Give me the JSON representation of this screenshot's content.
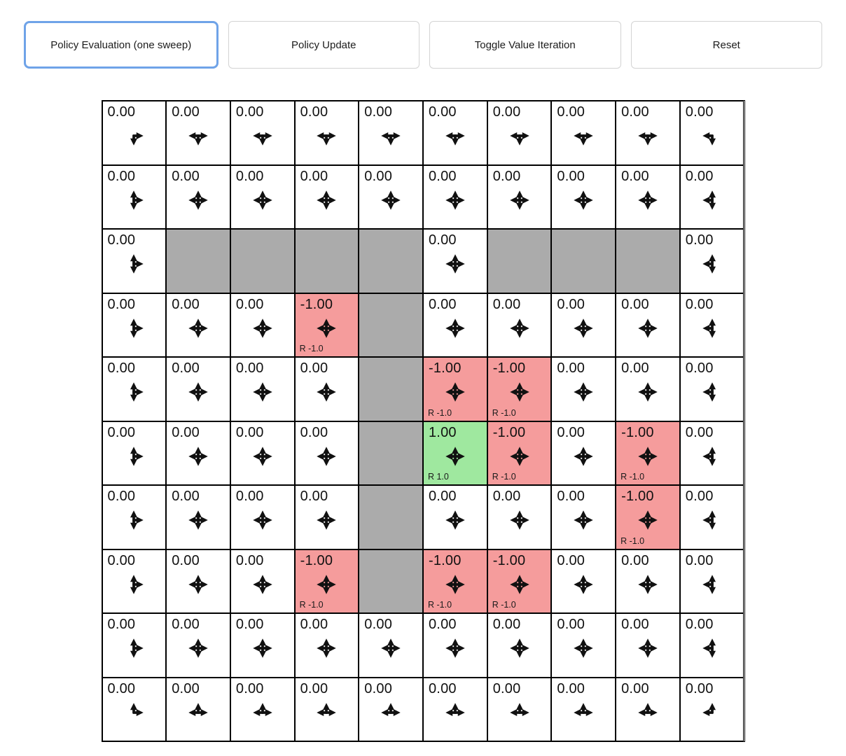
{
  "toolbar": {
    "buttons": [
      {
        "label": "Policy Evaluation (one sweep)",
        "active": true
      },
      {
        "label": "Policy Update",
        "active": false
      },
      {
        "label": "Toggle Value Iteration",
        "active": false
      },
      {
        "label": "Reset",
        "active": false
      }
    ]
  },
  "colors": {
    "wall": "#ababab",
    "penalty": "#f59c9c",
    "goal": "#9fe89f",
    "arrow": "#111111",
    "focus_border": "#6fa3e8",
    "button_border": "#d3d3d3",
    "grid_border": "#000000"
  },
  "grid": {
    "rows_count": 10,
    "cols_count": 10,
    "rows": [
      [
        {
          "value": "0.00",
          "type": "normal",
          "arrows": [
            "down",
            "right"
          ]
        },
        {
          "value": "0.00",
          "type": "normal",
          "arrows": [
            "left",
            "down",
            "right"
          ]
        },
        {
          "value": "0.00",
          "type": "normal",
          "arrows": [
            "left",
            "down",
            "right"
          ]
        },
        {
          "value": "0.00",
          "type": "normal",
          "arrows": [
            "left",
            "down",
            "right"
          ]
        },
        {
          "value": "0.00",
          "type": "normal",
          "arrows": [
            "left",
            "down",
            "right"
          ]
        },
        {
          "value": "0.00",
          "type": "normal",
          "arrows": [
            "left",
            "down",
            "right"
          ]
        },
        {
          "value": "0.00",
          "type": "normal",
          "arrows": [
            "left",
            "down",
            "right"
          ]
        },
        {
          "value": "0.00",
          "type": "normal",
          "arrows": [
            "left",
            "down",
            "right"
          ]
        },
        {
          "value": "0.00",
          "type": "normal",
          "arrows": [
            "left",
            "down",
            "right"
          ]
        },
        {
          "value": "0.00",
          "type": "normal",
          "arrows": [
            "left",
            "down"
          ]
        }
      ],
      [
        {
          "value": "0.00",
          "type": "normal",
          "arrows": [
            "up",
            "down",
            "right"
          ]
        },
        {
          "value": "0.00",
          "type": "normal",
          "arrows": [
            "up",
            "down",
            "left",
            "right"
          ]
        },
        {
          "value": "0.00",
          "type": "normal",
          "arrows": [
            "up",
            "down",
            "left",
            "right"
          ]
        },
        {
          "value": "0.00",
          "type": "normal",
          "arrows": [
            "up",
            "down",
            "left",
            "right"
          ]
        },
        {
          "value": "0.00",
          "type": "normal",
          "arrows": [
            "up",
            "down",
            "left",
            "right"
          ]
        },
        {
          "value": "0.00",
          "type": "normal",
          "arrows": [
            "up",
            "down",
            "left",
            "right"
          ]
        },
        {
          "value": "0.00",
          "type": "normal",
          "arrows": [
            "up",
            "down",
            "left",
            "right"
          ]
        },
        {
          "value": "0.00",
          "type": "normal",
          "arrows": [
            "up",
            "down",
            "left",
            "right"
          ]
        },
        {
          "value": "0.00",
          "type": "normal",
          "arrows": [
            "up",
            "down",
            "left",
            "right"
          ]
        },
        {
          "value": "0.00",
          "type": "normal",
          "arrows": [
            "up",
            "down",
            "left"
          ]
        }
      ],
      [
        {
          "value": "0.00",
          "type": "normal",
          "arrows": [
            "up",
            "down",
            "right"
          ]
        },
        {
          "type": "wall"
        },
        {
          "type": "wall"
        },
        {
          "type": "wall"
        },
        {
          "type": "wall"
        },
        {
          "value": "0.00",
          "type": "normal",
          "arrows": [
            "up",
            "down",
            "left",
            "right"
          ]
        },
        {
          "type": "wall"
        },
        {
          "type": "wall"
        },
        {
          "type": "wall"
        },
        {
          "value": "0.00",
          "type": "normal",
          "arrows": [
            "up",
            "down",
            "left"
          ]
        }
      ],
      [
        {
          "value": "0.00",
          "type": "normal",
          "arrows": [
            "up",
            "down",
            "right"
          ]
        },
        {
          "value": "0.00",
          "type": "normal",
          "arrows": [
            "up",
            "down",
            "left",
            "right"
          ]
        },
        {
          "value": "0.00",
          "type": "normal",
          "arrows": [
            "up",
            "down",
            "left",
            "right"
          ]
        },
        {
          "value": "-1.00",
          "type": "penalty",
          "reward": "R -1.0",
          "arrows": [
            "up",
            "down",
            "left",
            "right"
          ]
        },
        {
          "type": "wall"
        },
        {
          "value": "0.00",
          "type": "normal",
          "arrows": [
            "up",
            "down",
            "left",
            "right"
          ]
        },
        {
          "value": "0.00",
          "type": "normal",
          "arrows": [
            "up",
            "down",
            "left",
            "right"
          ]
        },
        {
          "value": "0.00",
          "type": "normal",
          "arrows": [
            "up",
            "down",
            "left",
            "right"
          ]
        },
        {
          "value": "0.00",
          "type": "normal",
          "arrows": [
            "up",
            "down",
            "left",
            "right"
          ]
        },
        {
          "value": "0.00",
          "type": "normal",
          "arrows": [
            "up",
            "down",
            "left"
          ]
        }
      ],
      [
        {
          "value": "0.00",
          "type": "normal",
          "arrows": [
            "up",
            "down",
            "right"
          ]
        },
        {
          "value": "0.00",
          "type": "normal",
          "arrows": [
            "up",
            "down",
            "left",
            "right"
          ]
        },
        {
          "value": "0.00",
          "type": "normal",
          "arrows": [
            "up",
            "down",
            "left",
            "right"
          ]
        },
        {
          "value": "0.00",
          "type": "normal",
          "arrows": [
            "up",
            "down",
            "left",
            "right"
          ]
        },
        {
          "type": "wall"
        },
        {
          "value": "-1.00",
          "type": "penalty",
          "reward": "R -1.0",
          "arrows": [
            "up",
            "down",
            "left",
            "right"
          ]
        },
        {
          "value": "-1.00",
          "type": "penalty",
          "reward": "R -1.0",
          "arrows": [
            "up",
            "down",
            "left",
            "right"
          ]
        },
        {
          "value": "0.00",
          "type": "normal",
          "arrows": [
            "up",
            "down",
            "left",
            "right"
          ]
        },
        {
          "value": "0.00",
          "type": "normal",
          "arrows": [
            "up",
            "down",
            "left",
            "right"
          ]
        },
        {
          "value": "0.00",
          "type": "normal",
          "arrows": [
            "up",
            "down",
            "left"
          ]
        }
      ],
      [
        {
          "value": "0.00",
          "type": "normal",
          "arrows": [
            "up",
            "down",
            "right"
          ]
        },
        {
          "value": "0.00",
          "type": "normal",
          "arrows": [
            "up",
            "down",
            "left",
            "right"
          ]
        },
        {
          "value": "0.00",
          "type": "normal",
          "arrows": [
            "up",
            "down",
            "left",
            "right"
          ]
        },
        {
          "value": "0.00",
          "type": "normal",
          "arrows": [
            "up",
            "down",
            "left",
            "right"
          ]
        },
        {
          "type": "wall"
        },
        {
          "value": "1.00",
          "type": "goal",
          "reward": "R 1.0",
          "arrows": [
            "up",
            "down",
            "left",
            "right"
          ]
        },
        {
          "value": "-1.00",
          "type": "penalty",
          "reward": "R -1.0",
          "arrows": [
            "up",
            "down",
            "left",
            "right"
          ]
        },
        {
          "value": "0.00",
          "type": "normal",
          "arrows": [
            "up",
            "down",
            "left",
            "right"
          ]
        },
        {
          "value": "-1.00",
          "type": "penalty",
          "reward": "R -1.0",
          "arrows": [
            "up",
            "down",
            "left",
            "right"
          ]
        },
        {
          "value": "0.00",
          "type": "normal",
          "arrows": [
            "up",
            "down",
            "left"
          ]
        }
      ],
      [
        {
          "value": "0.00",
          "type": "normal",
          "arrows": [
            "up",
            "down",
            "right"
          ]
        },
        {
          "value": "0.00",
          "type": "normal",
          "arrows": [
            "up",
            "down",
            "left",
            "right"
          ]
        },
        {
          "value": "0.00",
          "type": "normal",
          "arrows": [
            "up",
            "down",
            "left",
            "right"
          ]
        },
        {
          "value": "0.00",
          "type": "normal",
          "arrows": [
            "up",
            "down",
            "left",
            "right"
          ]
        },
        {
          "type": "wall"
        },
        {
          "value": "0.00",
          "type": "normal",
          "arrows": [
            "up",
            "down",
            "left",
            "right"
          ]
        },
        {
          "value": "0.00",
          "type": "normal",
          "arrows": [
            "up",
            "down",
            "left",
            "right"
          ]
        },
        {
          "value": "0.00",
          "type": "normal",
          "arrows": [
            "up",
            "down",
            "left",
            "right"
          ]
        },
        {
          "value": "-1.00",
          "type": "penalty",
          "reward": "R -1.0",
          "arrows": [
            "up",
            "down",
            "left",
            "right"
          ]
        },
        {
          "value": "0.00",
          "type": "normal",
          "arrows": [
            "up",
            "down",
            "left"
          ]
        }
      ],
      [
        {
          "value": "0.00",
          "type": "normal",
          "arrows": [
            "up",
            "down",
            "right"
          ]
        },
        {
          "value": "0.00",
          "type": "normal",
          "arrows": [
            "up",
            "down",
            "left",
            "right"
          ]
        },
        {
          "value": "0.00",
          "type": "normal",
          "arrows": [
            "up",
            "down",
            "left",
            "right"
          ]
        },
        {
          "value": "-1.00",
          "type": "penalty",
          "reward": "R -1.0",
          "arrows": [
            "up",
            "down",
            "left",
            "right"
          ]
        },
        {
          "type": "wall"
        },
        {
          "value": "-1.00",
          "type": "penalty",
          "reward": "R -1.0",
          "arrows": [
            "up",
            "down",
            "left",
            "right"
          ]
        },
        {
          "value": "-1.00",
          "type": "penalty",
          "reward": "R -1.0",
          "arrows": [
            "up",
            "down",
            "left",
            "right"
          ]
        },
        {
          "value": "0.00",
          "type": "normal",
          "arrows": [
            "up",
            "down",
            "left",
            "right"
          ]
        },
        {
          "value": "0.00",
          "type": "normal",
          "arrows": [
            "up",
            "down",
            "left",
            "right"
          ]
        },
        {
          "value": "0.00",
          "type": "normal",
          "arrows": [
            "up",
            "down",
            "left"
          ]
        }
      ],
      [
        {
          "value": "0.00",
          "type": "normal",
          "arrows": [
            "up",
            "down",
            "right"
          ]
        },
        {
          "value": "0.00",
          "type": "normal",
          "arrows": [
            "up",
            "down",
            "left",
            "right"
          ]
        },
        {
          "value": "0.00",
          "type": "normal",
          "arrows": [
            "up",
            "down",
            "left",
            "right"
          ]
        },
        {
          "value": "0.00",
          "type": "normal",
          "arrows": [
            "up",
            "down",
            "left",
            "right"
          ]
        },
        {
          "value": "0.00",
          "type": "normal",
          "arrows": [
            "up",
            "down",
            "left",
            "right"
          ]
        },
        {
          "value": "0.00",
          "type": "normal",
          "arrows": [
            "up",
            "down",
            "left",
            "right"
          ]
        },
        {
          "value": "0.00",
          "type": "normal",
          "arrows": [
            "up",
            "down",
            "left",
            "right"
          ]
        },
        {
          "value": "0.00",
          "type": "normal",
          "arrows": [
            "up",
            "down",
            "left",
            "right"
          ]
        },
        {
          "value": "0.00",
          "type": "normal",
          "arrows": [
            "up",
            "down",
            "left",
            "right"
          ]
        },
        {
          "value": "0.00",
          "type": "normal",
          "arrows": [
            "up",
            "down",
            "left"
          ]
        }
      ],
      [
        {
          "value": "0.00",
          "type": "normal",
          "arrows": [
            "up",
            "right"
          ]
        },
        {
          "value": "0.00",
          "type": "normal",
          "arrows": [
            "left",
            "up",
            "right"
          ]
        },
        {
          "value": "0.00",
          "type": "normal",
          "arrows": [
            "left",
            "up",
            "right"
          ]
        },
        {
          "value": "0.00",
          "type": "normal",
          "arrows": [
            "left",
            "up",
            "right"
          ]
        },
        {
          "value": "0.00",
          "type": "normal",
          "arrows": [
            "left",
            "up",
            "right"
          ]
        },
        {
          "value": "0.00",
          "type": "normal",
          "arrows": [
            "left",
            "up",
            "right"
          ]
        },
        {
          "value": "0.00",
          "type": "normal",
          "arrows": [
            "left",
            "up",
            "right"
          ]
        },
        {
          "value": "0.00",
          "type": "normal",
          "arrows": [
            "left",
            "up",
            "right"
          ]
        },
        {
          "value": "0.00",
          "type": "normal",
          "arrows": [
            "left",
            "up",
            "right"
          ]
        },
        {
          "value": "0.00",
          "type": "normal",
          "arrows": [
            "up",
            "left"
          ]
        }
      ]
    ]
  }
}
